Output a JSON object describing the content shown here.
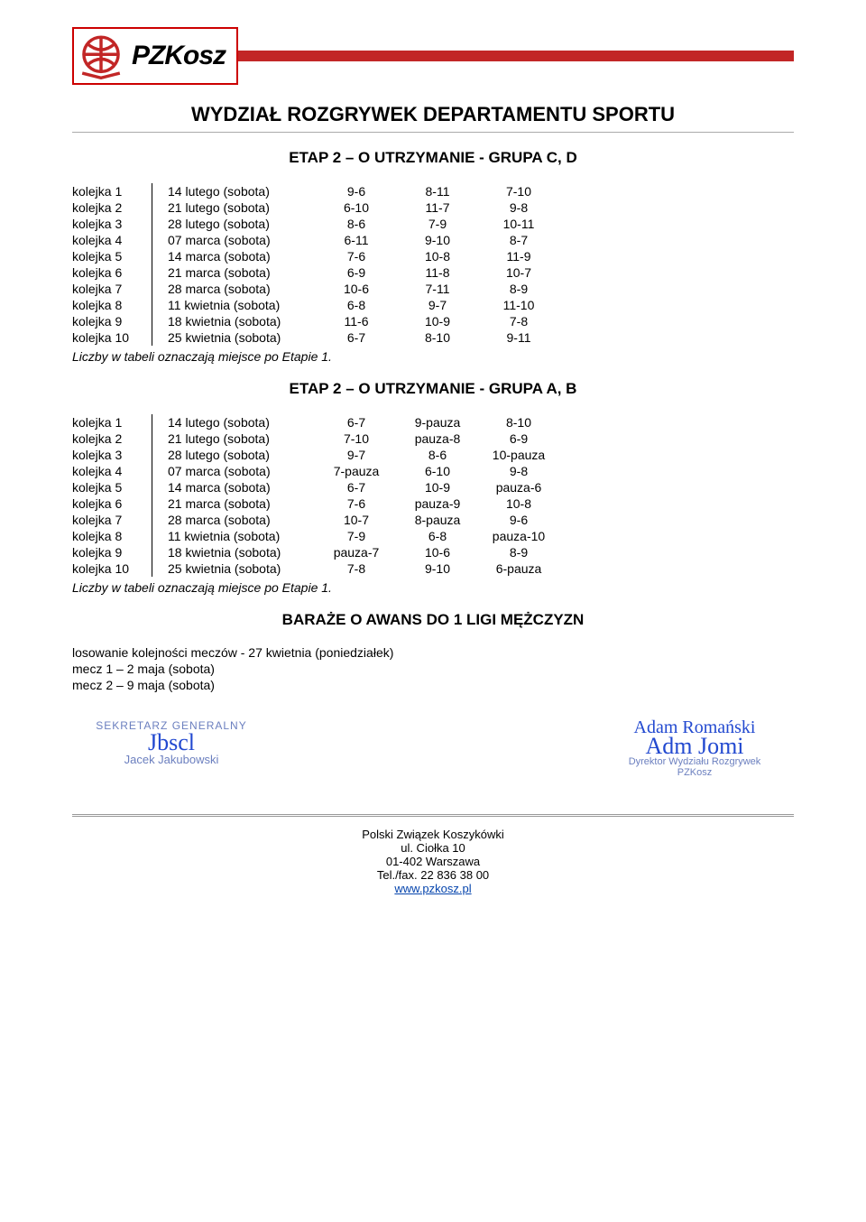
{
  "logo_text": "PZKosz",
  "dept_title": "WYDZIAŁ ROZGRYWEK DEPARTAMENTU SPORTU",
  "section1_title": "ETAP 2 – O UTRZYMANIE - GRUPA C, D",
  "table1": {
    "rows": [
      [
        "kolejka 1",
        "14 lutego (sobota)",
        "9-6",
        "8-11",
        "7-10"
      ],
      [
        "kolejka 2",
        "21 lutego (sobota)",
        "6-10",
        "11-7",
        "9-8"
      ],
      [
        "kolejka 3",
        "28 lutego (sobota)",
        "8-6",
        "7-9",
        "10-11"
      ],
      [
        "kolejka 4",
        "07 marca (sobota)",
        "6-11",
        "9-10",
        "8-7"
      ],
      [
        "kolejka 5",
        "14 marca (sobota)",
        "7-6",
        "10-8",
        "11-9"
      ],
      [
        "kolejka 6",
        "21 marca (sobota)",
        "6-9",
        "11-8",
        "10-7"
      ],
      [
        "kolejka 7",
        "28 marca (sobota)",
        "10-6",
        "7-11",
        "8-9"
      ],
      [
        "kolejka 8",
        "11 kwietnia (sobota)",
        "6-8",
        "9-7",
        "11-10"
      ],
      [
        "kolejka 9",
        "18 kwietnia (sobota)",
        "11-6",
        "10-9",
        "7-8"
      ],
      [
        "kolejka 10",
        "25 kwietnia (sobota)",
        "6-7",
        "8-10",
        "9-11"
      ]
    ]
  },
  "note1": "Liczby w tabeli oznaczają miejsce po Etapie 1.",
  "section2_title": "ETAP 2 – O UTRZYMANIE - GRUPA A, B",
  "table2": {
    "rows": [
      [
        "kolejka 1",
        "14 lutego (sobota)",
        "6-7",
        "9-pauza",
        "8-10"
      ],
      [
        "kolejka 2",
        "21 lutego (sobota)",
        "7-10",
        "pauza-8",
        "6-9"
      ],
      [
        "kolejka 3",
        "28 lutego (sobota)",
        "9-7",
        "8-6",
        "10-pauza"
      ],
      [
        "kolejka 4",
        "07 marca (sobota)",
        "7-pauza",
        "6-10",
        "9-8"
      ],
      [
        "kolejka 5",
        "14 marca (sobota)",
        "6-7",
        "10-9",
        "pauza-6"
      ],
      [
        "kolejka 6",
        "21 marca (sobota)",
        "7-6",
        "pauza-9",
        "10-8"
      ],
      [
        "kolejka 7",
        "28 marca (sobota)",
        "10-7",
        "8-pauza",
        "9-6"
      ],
      [
        "kolejka 8",
        "11 kwietnia (sobota)",
        "7-9",
        "6-8",
        "pauza-10"
      ],
      [
        "kolejka 9",
        "18 kwietnia (sobota)",
        "pauza-7",
        "10-6",
        "8-9"
      ],
      [
        "kolejka 10",
        "25 kwietnia (sobota)",
        "7-8",
        "9-10",
        "6-pauza"
      ]
    ]
  },
  "note2": "Liczby w tabeli oznaczają miejsce po Etapie 1.",
  "section3_title": "BARAŻE O AWANS DO 1 LIGI MĘŻCZYZN",
  "baraze_lines": [
    "losowanie kolejności meczów - 27 kwietnia (poniedziałek)",
    "mecz 1 – 2 maja (sobota)",
    "mecz 2 – 9 maja (sobota)"
  ],
  "sig_left": {
    "role": "SEKRETARZ GENERALNY",
    "name": "Jacek Jakubowski"
  },
  "sig_right": {
    "name": "Adam Romański",
    "role": "Dyrektor Wydziału Rozgrywek",
    "org": "PZKosz"
  },
  "footer": {
    "org": "Polski Związek Koszykówki",
    "addr1": "ul. Ciołka 10",
    "addr2": "01-402 Warszawa",
    "tel": "Tel./fax. 22 836 38 00",
    "url": "www.pzkosz.pl"
  }
}
